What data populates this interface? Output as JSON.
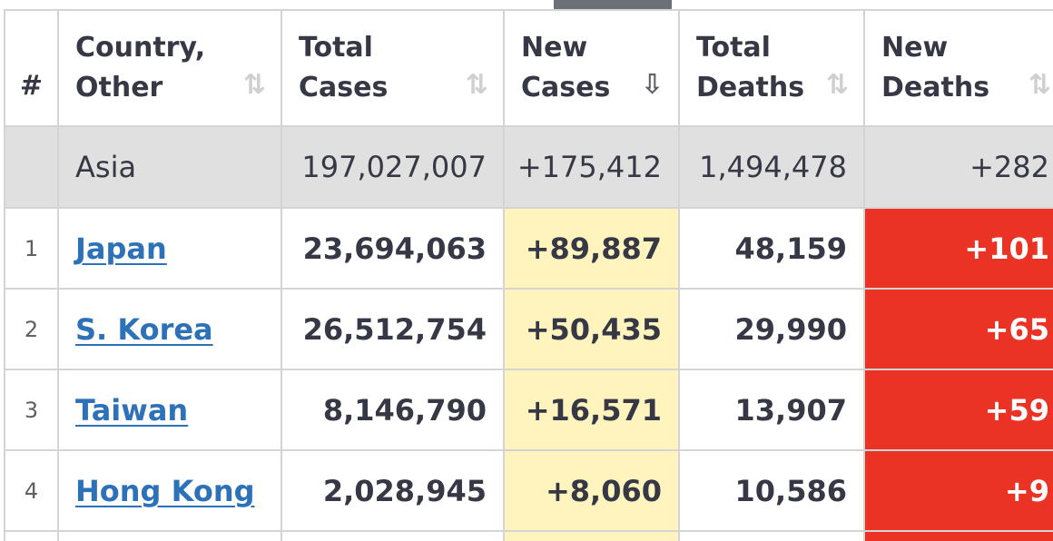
{
  "columns": {
    "num": "#",
    "country": "Country,\nOther",
    "total_cases": "Total\nCases",
    "new_cases": "New\nCases",
    "total_deaths": "Total\nDeaths",
    "new_deaths": "New\nDeaths"
  },
  "sort_icons": {
    "country": "⇅",
    "total_cases": "⇅",
    "new_cases": "⇩",
    "total_deaths": "⇅",
    "new_deaths": "⇅"
  },
  "continent_row": {
    "num": "",
    "country": "Asia",
    "total_cases": "197,027,007",
    "new_cases": "+175,412",
    "total_deaths": "1,494,478",
    "new_deaths": "+282"
  },
  "rows": [
    {
      "num": "1",
      "country": "Japan",
      "total_cases": "23,694,063",
      "new_cases": "+89,887",
      "total_deaths": "48,159",
      "new_deaths": "+101"
    },
    {
      "num": "2",
      "country": "S. Korea",
      "total_cases": "26,512,754",
      "new_cases": "+50,435",
      "total_deaths": "29,990",
      "new_deaths": "+65"
    },
    {
      "num": "3",
      "country": "Taiwan",
      "total_cases": "8,146,790",
      "new_cases": "+16,571",
      "total_deaths": "13,907",
      "new_deaths": "+59"
    },
    {
      "num": "4",
      "country": "Hong Kong",
      "total_cases": "2,028,945",
      "new_cases": "+8,060",
      "total_deaths": "10,586",
      "new_deaths": "+9"
    }
  ],
  "colors": {
    "header_text": "#363945",
    "link": "#2d72b8",
    "new_cases_bg": "#fff4bd",
    "new_deaths_bg": "#ea3325",
    "continent_bg": "#e0e0e0",
    "grid": "#d4d4d4"
  }
}
